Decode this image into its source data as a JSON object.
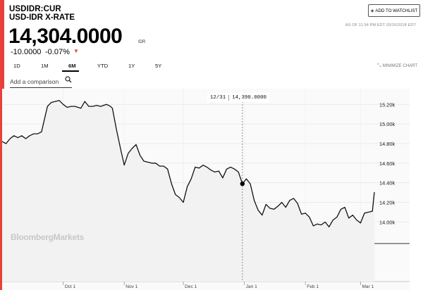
{
  "header": {
    "ticker": "USDIDR:CUR",
    "name": "USD-IDR X-RATE",
    "watchlist_label": "ADD TO WATCHLIST",
    "as_of": "AS OF 11:34 PM EDT 03/10/2018 EDT",
    "price": "14,304.0000",
    "currency": "IDR",
    "change": "-10.0000",
    "change_pct": "-0.07%"
  },
  "ranges": {
    "tabs": [
      "1D",
      "1M",
      "6M",
      "YTD",
      "1Y",
      "5Y"
    ],
    "active": "6M",
    "minimize_label": "MINIMIZE CHART"
  },
  "compare": {
    "placeholder": "Add a comparison"
  },
  "cursor": {
    "date": "12/31",
    "value": "14,390.0000"
  },
  "watermark": "BloombergMarkets",
  "colors": {
    "accent": "#e8403a",
    "line": "#111111",
    "area": "#f2f2f2"
  },
  "chart_data": {
    "type": "line",
    "y_ticks": [
      "15.20k",
      "15.00k",
      "14.80k",
      "14.60k",
      "14.40k",
      "14.20k",
      "14.00k"
    ],
    "y_tick_values": [
      15200,
      15000,
      14800,
      14600,
      14400,
      14200,
      14000
    ],
    "x_ticks": [
      "Oct 1",
      "Nov 1",
      "Dec 1",
      "Jan 1",
      "Feb 1",
      "Mar 1"
    ],
    "x_tick_days": [
      31,
      62,
      92,
      123,
      154,
      182
    ],
    "ylim": [
      13780,
      15360
    ],
    "xlim": [
      0,
      189
    ],
    "grid": true,
    "cursor_day": 122,
    "series": [
      {
        "values": [
          [
            0,
            14820
          ],
          [
            2,
            14800
          ],
          [
            4,
            14850
          ],
          [
            6,
            14880
          ],
          [
            8,
            14860
          ],
          [
            10,
            14880
          ],
          [
            12,
            14850
          ],
          [
            14,
            14880
          ],
          [
            16,
            14900
          ],
          [
            18,
            14900
          ],
          [
            20,
            14920
          ],
          [
            23,
            15180
          ],
          [
            25,
            15220
          ],
          [
            27,
            15230
          ],
          [
            29,
            15240
          ],
          [
            31,
            15200
          ],
          [
            33,
            15170
          ],
          [
            35,
            15180
          ],
          [
            37,
            15180
          ],
          [
            40,
            15160
          ],
          [
            42,
            15230
          ],
          [
            44,
            15180
          ],
          [
            46,
            15180
          ],
          [
            48,
            15190
          ],
          [
            50,
            15180
          ],
          [
            53,
            15200
          ],
          [
            55,
            15180
          ],
          [
            56,
            15160
          ],
          [
            58,
            14950
          ],
          [
            60,
            14760
          ],
          [
            62,
            14580
          ],
          [
            64,
            14700
          ],
          [
            66,
            14750
          ],
          [
            68,
            14790
          ],
          [
            70,
            14680
          ],
          [
            72,
            14620
          ],
          [
            74,
            14610
          ],
          [
            76,
            14600
          ],
          [
            78,
            14600
          ],
          [
            80,
            14570
          ],
          [
            82,
            14570
          ],
          [
            84,
            14540
          ],
          [
            86,
            14390
          ],
          [
            88,
            14280
          ],
          [
            90,
            14250
          ],
          [
            92,
            14200
          ],
          [
            94,
            14360
          ],
          [
            96,
            14440
          ],
          [
            98,
            14560
          ],
          [
            100,
            14550
          ],
          [
            102,
            14580
          ],
          [
            104,
            14560
          ],
          [
            106,
            14530
          ],
          [
            108,
            14510
          ],
          [
            110,
            14520
          ],
          [
            112,
            14450
          ],
          [
            114,
            14540
          ],
          [
            116,
            14560
          ],
          [
            118,
            14540
          ],
          [
            120,
            14510
          ],
          [
            122,
            14390
          ],
          [
            124,
            14440
          ],
          [
            126,
            14390
          ],
          [
            128,
            14220
          ],
          [
            130,
            14120
          ],
          [
            132,
            14070
          ],
          [
            134,
            14180
          ],
          [
            136,
            14140
          ],
          [
            138,
            14130
          ],
          [
            140,
            14160
          ],
          [
            142,
            14200
          ],
          [
            144,
            14150
          ],
          [
            146,
            14220
          ],
          [
            148,
            14240
          ],
          [
            150,
            14190
          ],
          [
            152,
            14080
          ],
          [
            154,
            14090
          ],
          [
            156,
            14050
          ],
          [
            158,
            13960
          ],
          [
            160,
            13980
          ],
          [
            162,
            13970
          ],
          [
            164,
            14000
          ],
          [
            166,
            13950
          ],
          [
            168,
            14020
          ],
          [
            170,
            14050
          ],
          [
            172,
            14130
          ],
          [
            174,
            14150
          ],
          [
            176,
            14040
          ],
          [
            178,
            14070
          ],
          [
            180,
            14020
          ],
          [
            182,
            13990
          ],
          [
            184,
            14090
          ],
          [
            186,
            14100
          ],
          [
            188,
            14110
          ],
          [
            189,
            14304
          ]
        ]
      }
    ]
  }
}
